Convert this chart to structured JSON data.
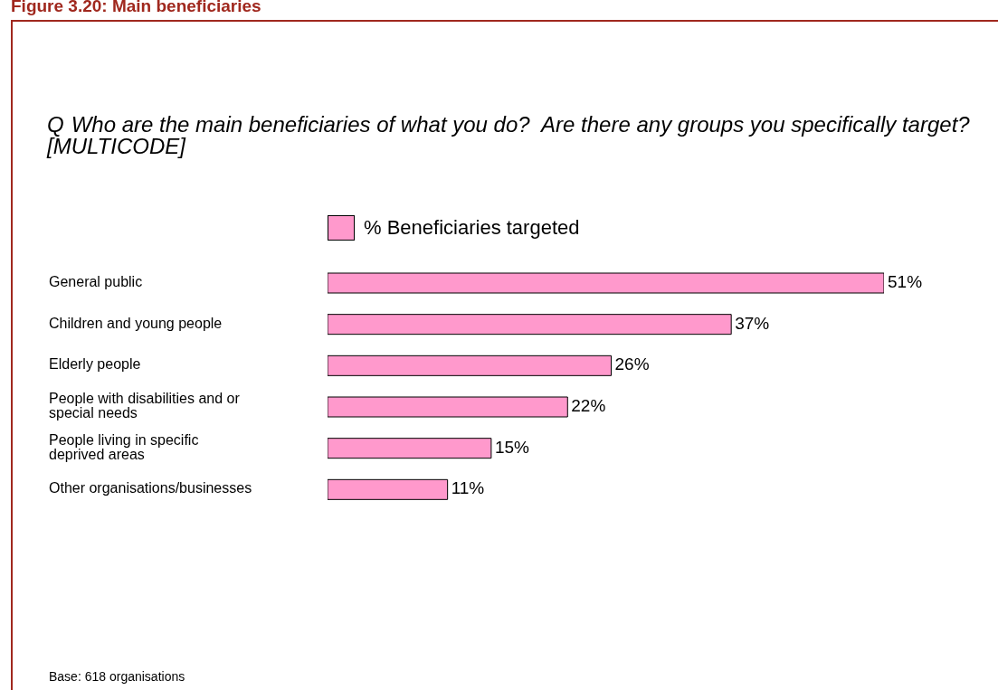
{
  "chart_data": {
    "type": "bar",
    "orientation": "horizontal",
    "title": "Figure 3.20: Main beneficiaries",
    "subtitle": "Q\tWho are the main beneficiaries of what you do?  Are there any groups you specifically target? [MULTICODE]",
    "categories": [
      "General public",
      "Children and young people",
      "Elderly people",
      "People with disabilities and or special needs",
      "People living in specific deprived areas",
      "Other organisations/businesses"
    ],
    "series": [
      {
        "name": "% Beneficiaries targeted",
        "color": "#ff99cc",
        "values": [
          51,
          37,
          26,
          22,
          15,
          11
        ],
        "value_labels": [
          "51%",
          "37%",
          "26%",
          "22%",
          "15%",
          "11%"
        ]
      }
    ],
    "legend": "top",
    "annotations": [
      "Base: 618 organisations"
    ]
  }
}
